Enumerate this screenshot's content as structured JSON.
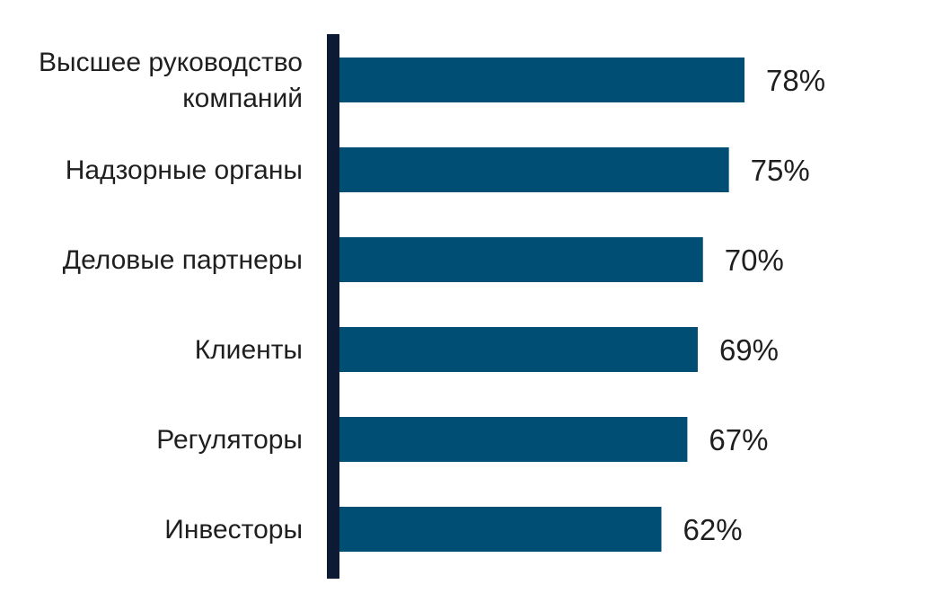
{
  "chart_data": {
    "type": "bar",
    "orientation": "horizontal",
    "categories": [
      [
        "Высшее руководство",
        "компаний"
      ],
      [
        "Надзорные органы"
      ],
      [
        "Деловые партнеры"
      ],
      [
        "Клиенты"
      ],
      [
        "Регуляторы"
      ],
      [
        "Инвесторы"
      ]
    ],
    "values": [
      78,
      75,
      70,
      69,
      67,
      62
    ],
    "value_labels": [
      "78%",
      "75%",
      "70%",
      "69%",
      "67%",
      "62%"
    ],
    "unit": "%",
    "xlim": [
      0,
      100
    ],
    "grid": false,
    "legend": "none",
    "colors": {
      "bar": "#004e74",
      "axis": "#0c1a33",
      "text": "#1f1f1f"
    }
  }
}
